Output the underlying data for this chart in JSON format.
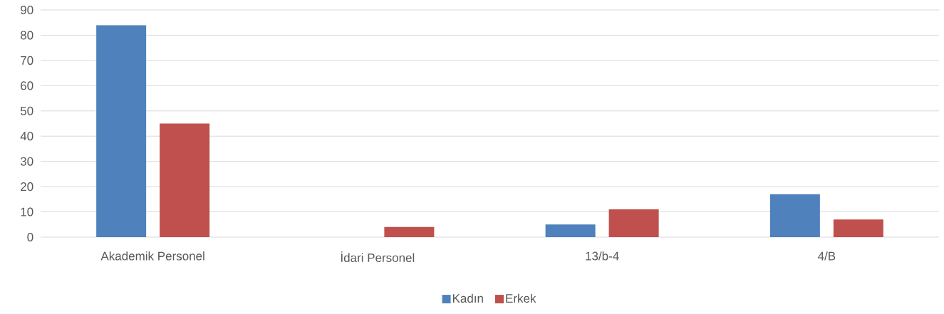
{
  "chart_data": {
    "type": "bar",
    "categories": [
      "Akademik Personel",
      "İdari Personel",
      "13/b-4",
      "4/B"
    ],
    "series": [
      {
        "name": "Kadın",
        "color": "#4f81bd",
        "values": [
          84,
          0,
          5,
          17
        ]
      },
      {
        "name": "Erkek",
        "color": "#c0504d",
        "values": [
          45,
          4,
          11,
          7
        ]
      }
    ],
    "ylim": [
      0,
      90
    ],
    "yticks": [
      0,
      10,
      20,
      30,
      40,
      50,
      60,
      70,
      80,
      90
    ],
    "grid": "y",
    "legend": "bottom"
  }
}
